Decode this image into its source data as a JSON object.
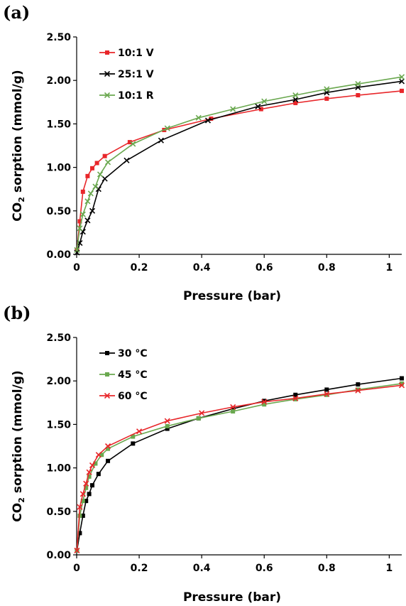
{
  "chart_data": [
    {
      "panel": "(a)",
      "type": "line",
      "xlabel": "Pressure (bar)",
      "ylabel_prefix": "CO",
      "ylabel_sub": "2",
      "ylabel_suffix": " sorption (mmol/g)",
      "xlim": [
        0,
        1.04
      ],
      "ylim": [
        0,
        2.5
      ],
      "xticks": [
        {
          "v": 0,
          "label": "0"
        },
        {
          "v": 0.2,
          "label": "0.2"
        },
        {
          "v": 0.4,
          "label": "0.4"
        },
        {
          "v": 0.6,
          "label": "0.6"
        },
        {
          "v": 0.8,
          "label": "0.8"
        },
        {
          "v": 1.0,
          "label": "1"
        }
      ],
      "yticks": [
        {
          "v": 0,
          "label": "0.00"
        },
        {
          "v": 0.5,
          "label": "0.50"
        },
        {
          "v": 1.0,
          "label": "1.00"
        },
        {
          "v": 1.5,
          "label": "1.50"
        },
        {
          "v": 2.0,
          "label": "2.00"
        },
        {
          "v": 2.5,
          "label": "2.50"
        }
      ],
      "grid": false,
      "legend_position": "top-left",
      "series": [
        {
          "name": "10:1 V",
          "color": "#e8262a",
          "marker": "square",
          "x": [
            0.001,
            0.01,
            0.02,
            0.035,
            0.05,
            0.065,
            0.09,
            0.17,
            0.28,
            0.43,
            0.59,
            0.7,
            0.8,
            0.9,
            1.04
          ],
          "y": [
            0.05,
            0.38,
            0.72,
            0.9,
            0.99,
            1.05,
            1.13,
            1.29,
            1.43,
            1.56,
            1.67,
            1.74,
            1.79,
            1.83,
            1.88
          ]
        },
        {
          "name": "25:1 V",
          "color": "#000000",
          "marker": "x",
          "x": [
            0.001,
            0.01,
            0.02,
            0.035,
            0.05,
            0.07,
            0.09,
            0.16,
            0.27,
            0.42,
            0.58,
            0.7,
            0.8,
            0.9,
            1.04
          ],
          "y": [
            0.02,
            0.13,
            0.26,
            0.39,
            0.5,
            0.75,
            0.87,
            1.08,
            1.31,
            1.54,
            1.7,
            1.78,
            1.86,
            1.92,
            1.99
          ]
        },
        {
          "name": "10:1 R",
          "color": "#6aa84f",
          "marker": "x",
          "x": [
            0.001,
            0.01,
            0.02,
            0.035,
            0.045,
            0.06,
            0.075,
            0.1,
            0.18,
            0.29,
            0.39,
            0.5,
            0.6,
            0.7,
            0.8,
            0.9,
            1.04
          ],
          "y": [
            0.05,
            0.3,
            0.46,
            0.61,
            0.7,
            0.78,
            0.92,
            1.06,
            1.27,
            1.45,
            1.57,
            1.67,
            1.76,
            1.83,
            1.9,
            1.96,
            2.04
          ]
        }
      ]
    },
    {
      "panel": "(b)",
      "type": "line",
      "xlabel": "Pressure (bar)",
      "ylabel_prefix": "CO",
      "ylabel_sub": "2",
      "ylabel_suffix": " sorption (mmol/g)",
      "xlim": [
        0,
        1.04
      ],
      "ylim": [
        0,
        2.5
      ],
      "xticks": [
        {
          "v": 0,
          "label": "0"
        },
        {
          "v": 0.2,
          "label": "0.2"
        },
        {
          "v": 0.4,
          "label": "0.4"
        },
        {
          "v": 0.6,
          "label": "0.6"
        },
        {
          "v": 0.8,
          "label": "0.8"
        },
        {
          "v": 1.0,
          "label": "1"
        }
      ],
      "yticks": [
        {
          "v": 0,
          "label": "0.00"
        },
        {
          "v": 0.5,
          "label": "0.50"
        },
        {
          "v": 1.0,
          "label": "1.00"
        },
        {
          "v": 1.5,
          "label": "1.50"
        },
        {
          "v": 2.0,
          "label": "2.00"
        },
        {
          "v": 2.5,
          "label": "2.50"
        }
      ],
      "grid": false,
      "legend_position": "top-left",
      "series": [
        {
          "name": "30 °C",
          "color": "#000000",
          "marker": "square",
          "x": [
            0.001,
            0.01,
            0.02,
            0.03,
            0.04,
            0.05,
            0.07,
            0.1,
            0.18,
            0.29,
            0.39,
            0.5,
            0.6,
            0.7,
            0.8,
            0.9,
            1.04
          ],
          "y": [
            0.05,
            0.25,
            0.45,
            0.62,
            0.7,
            0.8,
            0.93,
            1.08,
            1.28,
            1.45,
            1.57,
            1.68,
            1.77,
            1.84,
            1.9,
            1.96,
            2.03
          ]
        },
        {
          "name": "45 °C",
          "color": "#6aa84f",
          "marker": "square",
          "x": [
            0.001,
            0.01,
            0.02,
            0.03,
            0.04,
            0.06,
            0.08,
            0.1,
            0.18,
            0.29,
            0.39,
            0.5,
            0.6,
            0.7,
            0.8,
            0.9,
            1.04
          ],
          "y": [
            0.05,
            0.45,
            0.62,
            0.77,
            0.9,
            1.05,
            1.15,
            1.22,
            1.36,
            1.48,
            1.57,
            1.65,
            1.73,
            1.79,
            1.84,
            1.9,
            1.97
          ]
        },
        {
          "name": "60 °C",
          "color": "#e8262a",
          "marker": "x",
          "x": [
            0.001,
            0.01,
            0.02,
            0.03,
            0.04,
            0.05,
            0.07,
            0.1,
            0.2,
            0.29,
            0.4,
            0.5,
            0.6,
            0.7,
            0.8,
            0.9,
            1.04
          ],
          "y": [
            0.05,
            0.55,
            0.7,
            0.82,
            0.95,
            1.03,
            1.15,
            1.25,
            1.42,
            1.54,
            1.63,
            1.7,
            1.76,
            1.8,
            1.85,
            1.89,
            1.95
          ]
        }
      ]
    }
  ]
}
